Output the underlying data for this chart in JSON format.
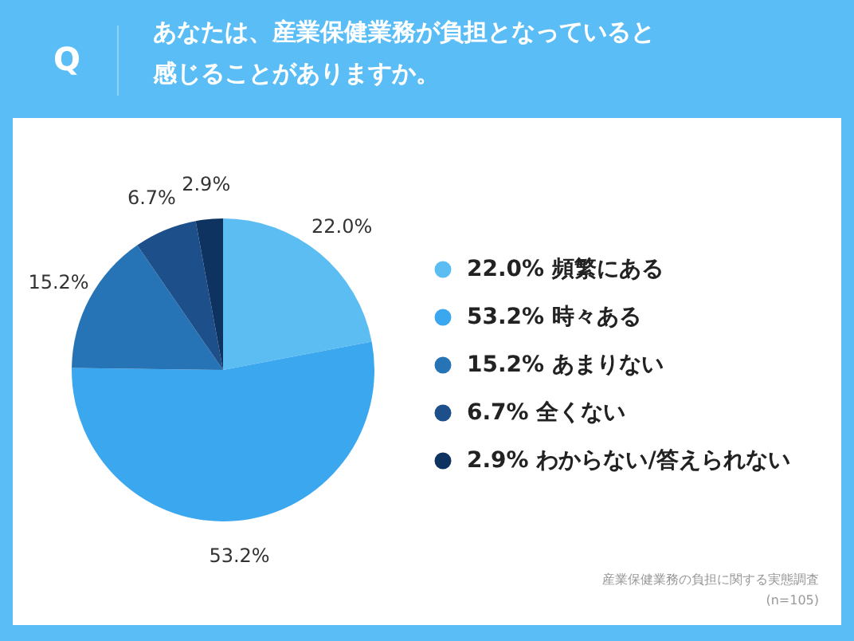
{
  "chart_data": {
    "type": "pie",
    "title": "Q",
    "subtitle": "あなたは、産業保健業務が負担となっていると感じることがありますか。",
    "categories": [
      "頻繁にある",
      "時々ある",
      "あまりない",
      "全くない",
      "わからない/答えられない"
    ],
    "values": [
      22.0,
      53.2,
      15.2,
      6.7,
      2.9
    ],
    "value_labels": [
      "22.0%",
      "53.2%",
      "15.2%",
      "6.7%",
      "2.9%"
    ],
    "colors": [
      "#5cbdf2",
      "#3ba7ef",
      "#2674b6",
      "#1d4f8a",
      "#0f3360"
    ],
    "legend": "right",
    "annotations": [
      "産業保健業務の負担に関する実態調査",
      "(n=105)"
    ]
  }
}
